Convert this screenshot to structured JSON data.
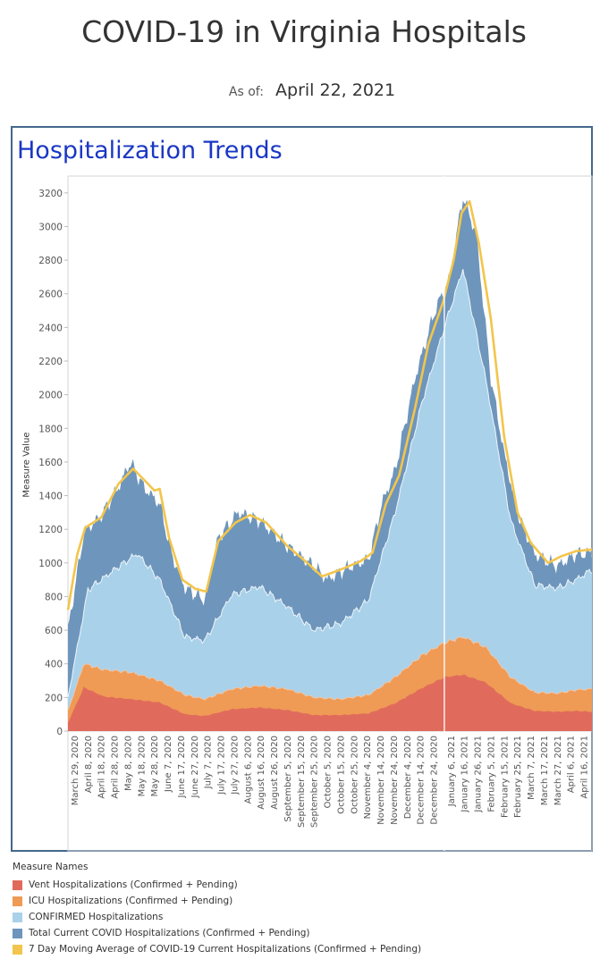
{
  "header": {
    "title": "COVID-19 in Virginia Hospitals",
    "asof_label": "As of:",
    "asof_date": "April 22, 2021"
  },
  "section": {
    "title": "Hospitalization Trends"
  },
  "legend": {
    "title": "Measure Names",
    "items": [
      {
        "label": "Vent Hospitalizations (Confirmed + Pending)",
        "color": "#e06b5c"
      },
      {
        "label": "ICU Hospitalizations (Confirmed + Pending)",
        "color": "#ef9a55"
      },
      {
        "label": "CONFIRMED Hospitalizations",
        "color": "#a9d1ea"
      },
      {
        "label": "Total Current COVID Hospitalizations (Confirmed + Pending)",
        "color": "#6e95bb"
      },
      {
        "label": "7 Day Moving Average of COVID-19 Current Hospitalizations (Confirmed + Pending)",
        "color": "#f2c54c"
      }
    ]
  },
  "chart_data": {
    "type": "area",
    "ylabel": "Measure Value",
    "ylim": [
      0,
      3300
    ],
    "yticks": [
      0,
      200,
      400,
      600,
      800,
      1000,
      1200,
      1400,
      1600,
      1800,
      2000,
      2200,
      2400,
      2600,
      2800,
      3000,
      3200
    ],
    "xticks": [
      "March 29, 2020",
      "April 8, 2020",
      "April 18, 2020",
      "April 28, 2020",
      "May 8, 2020",
      "May 18, 2020",
      "May 28, 2020",
      "June 7, 2020",
      "June 17, 2020",
      "June 27, 2020",
      "July 7, 2020",
      "July 17, 2020",
      "July 27, 2020",
      "August 6, 2020",
      "August 16, 2020",
      "August 26, 2020",
      "September 5, 2020",
      "September 15, 2020",
      "September 25, 2020",
      "October 5, 2020",
      "October 15, 2020",
      "October 25, 2020",
      "November 4, 2020",
      "November 14, 2020",
      "November 24, 2020",
      "December 4, 2020",
      "December 14, 2020",
      "December 24, 2020",
      "January 6, 2021",
      "January 16, 2021",
      "January 26, 2021",
      "February 5, 2021",
      "February 15, 2021",
      "February 25, 2021",
      "March 7, 2021",
      "March 17, 2021",
      "March 27, 2021",
      "April 6, 2021",
      "April 16, 2021"
    ],
    "x_start": "2020-03-24",
    "x_end": "2021-04-22",
    "series": [
      {
        "name": "Vent Hospitalizations (Confirmed + Pending)",
        "points": [
          [
            "2020-03-24",
            50
          ],
          [
            "2020-04-05",
            260
          ],
          [
            "2020-04-20",
            205
          ],
          [
            "2020-05-10",
            190
          ],
          [
            "2020-06-01",
            170
          ],
          [
            "2020-06-20",
            100
          ],
          [
            "2020-07-05",
            90
          ],
          [
            "2020-07-25",
            130
          ],
          [
            "2020-08-15",
            140
          ],
          [
            "2020-09-05",
            125
          ],
          [
            "2020-09-25",
            95
          ],
          [
            "2020-10-15",
            95
          ],
          [
            "2020-11-05",
            105
          ],
          [
            "2020-11-25",
            165
          ],
          [
            "2020-12-15",
            255
          ],
          [
            "2021-01-01",
            320
          ],
          [
            "2021-01-15",
            335
          ],
          [
            "2021-02-01",
            290
          ],
          [
            "2021-02-20",
            165
          ],
          [
            "2021-03-10",
            120
          ],
          [
            "2021-03-27",
            115
          ],
          [
            "2021-04-10",
            120
          ],
          [
            "2021-04-22",
            115
          ]
        ]
      },
      {
        "name": "ICU Hospitalizations (Confirmed + Pending)",
        "points": [
          [
            "2020-03-24",
            120
          ],
          [
            "2020-04-05",
            400
          ],
          [
            "2020-04-20",
            365
          ],
          [
            "2020-05-10",
            350
          ],
          [
            "2020-06-01",
            300
          ],
          [
            "2020-06-20",
            215
          ],
          [
            "2020-07-05",
            190
          ],
          [
            "2020-07-25",
            250
          ],
          [
            "2020-08-15",
            270
          ],
          [
            "2020-09-05",
            250
          ],
          [
            "2020-09-25",
            200
          ],
          [
            "2020-10-15",
            190
          ],
          [
            "2020-11-05",
            215
          ],
          [
            "2020-11-25",
            320
          ],
          [
            "2020-12-15",
            450
          ],
          [
            "2021-01-01",
            525
          ],
          [
            "2021-01-15",
            560
          ],
          [
            "2021-02-01",
            500
          ],
          [
            "2021-02-20",
            320
          ],
          [
            "2021-03-10",
            230
          ],
          [
            "2021-03-27",
            225
          ],
          [
            "2021-04-10",
            245
          ],
          [
            "2021-04-22",
            250
          ]
        ]
      },
      {
        "name": "CONFIRMED Hospitalizations",
        "points": [
          [
            "2020-03-24",
            200
          ],
          [
            "2020-04-08",
            840
          ],
          [
            "2020-04-28",
            960
          ],
          [
            "2020-05-15",
            1055
          ],
          [
            "2020-06-01",
            900
          ],
          [
            "2020-06-20",
            560
          ],
          [
            "2020-07-05",
            540
          ],
          [
            "2020-07-25",
            810
          ],
          [
            "2020-08-15",
            860
          ],
          [
            "2020-09-05",
            740
          ],
          [
            "2020-09-25",
            600
          ],
          [
            "2020-10-15",
            640
          ],
          [
            "2020-11-05",
            780
          ],
          [
            "2020-11-25",
            1300
          ],
          [
            "2020-12-15",
            1950
          ],
          [
            "2021-01-01",
            2400
          ],
          [
            "2021-01-15",
            2750
          ],
          [
            "2021-02-01",
            2100
          ],
          [
            "2021-02-20",
            1250
          ],
          [
            "2021-03-10",
            870
          ],
          [
            "2021-03-27",
            850
          ],
          [
            "2021-04-10",
            900
          ],
          [
            "2021-04-22",
            960
          ]
        ]
      },
      {
        "name": "Total Current COVID Hospitalizations (Confirmed + Pending)",
        "points": [
          [
            "2020-03-24",
            600
          ],
          [
            "2020-04-05",
            1180
          ],
          [
            "2020-04-18",
            1280
          ],
          [
            "2020-05-01",
            1450
          ],
          [
            "2020-05-10",
            1600
          ],
          [
            "2020-05-20",
            1450
          ],
          [
            "2020-06-01",
            1350
          ],
          [
            "2020-06-10",
            1050
          ],
          [
            "2020-06-20",
            850
          ],
          [
            "2020-07-05",
            780
          ],
          [
            "2020-07-15",
            1150
          ],
          [
            "2020-07-30",
            1300
          ],
          [
            "2020-08-15",
            1250
          ],
          [
            "2020-09-05",
            1100
          ],
          [
            "2020-09-25",
            980
          ],
          [
            "2020-10-05",
            900
          ],
          [
            "2020-10-20",
            970
          ],
          [
            "2020-11-05",
            1020
          ],
          [
            "2020-11-15",
            1350
          ],
          [
            "2020-11-25",
            1550
          ],
          [
            "2020-12-10",
            2100
          ],
          [
            "2020-12-25",
            2500
          ],
          [
            "2021-01-05",
            2700
          ],
          [
            "2021-01-15",
            3180
          ],
          [
            "2021-01-25",
            2950
          ],
          [
            "2021-02-05",
            2100
          ],
          [
            "2021-02-15",
            1650
          ],
          [
            "2021-02-25",
            1300
          ],
          [
            "2021-03-10",
            1050
          ],
          [
            "2021-03-27",
            980
          ],
          [
            "2021-04-10",
            1050
          ],
          [
            "2021-04-22",
            1060
          ]
        ]
      },
      {
        "name": "7 Day Moving Average of COVID-19 Current Hospitalizations (Confirmed + Pending)",
        "points": [
          [
            "2020-03-24",
            720
          ],
          [
            "2020-03-31",
            1050
          ],
          [
            "2020-04-06",
            1210
          ],
          [
            "2020-04-18",
            1270
          ],
          [
            "2020-05-01",
            1470
          ],
          [
            "2020-05-12",
            1560
          ],
          [
            "2020-05-22",
            1480
          ],
          [
            "2020-05-28",
            1430
          ],
          [
            "2020-06-01",
            1440
          ],
          [
            "2020-06-08",
            1150
          ],
          [
            "2020-06-18",
            900
          ],
          [
            "2020-06-28",
            845
          ],
          [
            "2020-07-06",
            830
          ],
          [
            "2020-07-15",
            1130
          ],
          [
            "2020-07-28",
            1240
          ],
          [
            "2020-08-08",
            1285
          ],
          [
            "2020-08-20",
            1240
          ],
          [
            "2020-09-05",
            1100
          ],
          [
            "2020-09-20",
            1000
          ],
          [
            "2020-10-01",
            920
          ],
          [
            "2020-10-15",
            960
          ],
          [
            "2020-10-30",
            1010
          ],
          [
            "2020-11-08",
            1060
          ],
          [
            "2020-11-18",
            1350
          ],
          [
            "2020-11-28",
            1520
          ],
          [
            "2020-12-10",
            1920
          ],
          [
            "2020-12-20",
            2300
          ],
          [
            "2020-12-31",
            2550
          ],
          [
            "2021-01-08",
            2800
          ],
          [
            "2021-01-14",
            3080
          ],
          [
            "2021-01-20",
            3150
          ],
          [
            "2021-01-27",
            2900
          ],
          [
            "2021-02-05",
            2450
          ],
          [
            "2021-02-15",
            1750
          ],
          [
            "2021-02-25",
            1300
          ],
          [
            "2021-03-07",
            1120
          ],
          [
            "2021-03-20",
            1000
          ],
          [
            "2021-03-30",
            1040
          ],
          [
            "2021-04-10",
            1070
          ],
          [
            "2021-04-22",
            1080
          ]
        ]
      }
    ]
  }
}
